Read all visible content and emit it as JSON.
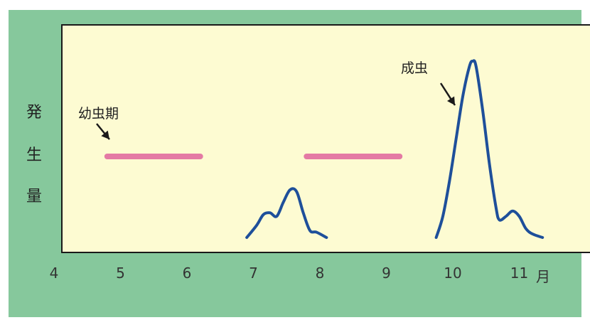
{
  "chart_data": {
    "type": "line",
    "ylabel_chars": [
      "発",
      "生",
      "量"
    ],
    "xlabel": "月",
    "x_ticks": [
      4,
      5,
      6,
      7,
      8,
      9,
      10,
      11
    ],
    "x_tick_labels": [
      "4",
      "5",
      "6",
      "7",
      "8",
      "9",
      "10",
      "11"
    ],
    "xlim": [
      4,
      11.6
    ],
    "ylim": [
      0,
      1
    ],
    "larva_label": "幼虫期",
    "adult_label": "成虫",
    "larva_periods": [
      [
        4.8,
        6.2
      ],
      [
        7.8,
        9.2
      ]
    ],
    "series": [
      {
        "x": [
          6.9,
          7.05,
          7.15,
          7.25,
          7.35,
          7.45,
          7.55,
          7.65,
          7.75,
          7.85,
          7.95,
          8.1
        ],
        "y": [
          0.0,
          0.07,
          0.13,
          0.14,
          0.12,
          0.2,
          0.27,
          0.26,
          0.14,
          0.04,
          0.03,
          0.0
        ]
      },
      {
        "x": [
          9.75,
          9.85,
          9.95,
          10.05,
          10.15,
          10.25,
          10.3,
          10.35,
          10.45,
          10.55,
          10.65,
          10.7,
          10.8,
          10.9,
          11.0,
          11.1,
          11.2,
          11.35
        ],
        "y": [
          0.0,
          0.12,
          0.32,
          0.56,
          0.8,
          0.97,
          1.0,
          0.97,
          0.72,
          0.42,
          0.17,
          0.1,
          0.12,
          0.15,
          0.12,
          0.05,
          0.02,
          0.0
        ]
      }
    ],
    "colors": {
      "curve": "#1e4f9a",
      "larva": "#e47aa4",
      "panel": "#fdfbd2",
      "frame": "#86c89c"
    }
  }
}
